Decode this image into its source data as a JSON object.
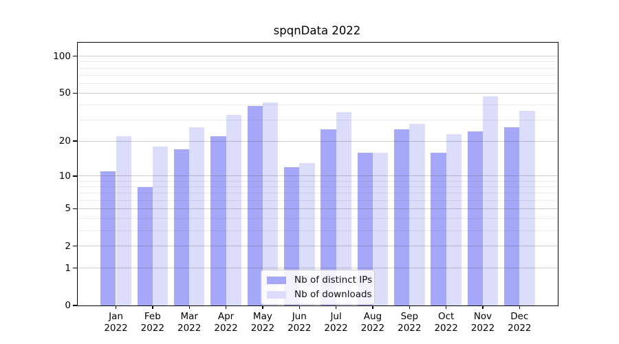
{
  "chart_data": {
    "type": "bar",
    "title": "spqnData 2022",
    "categories": [
      "Jan 2022",
      "Feb 2022",
      "Mar 2022",
      "Apr 2022",
      "May 2022",
      "Jun 2022",
      "Jul 2022",
      "Aug 2022",
      "Sep 2022",
      "Oct 2022",
      "Nov 2022",
      "Dec 2022"
    ],
    "series": [
      {
        "key": "ips",
        "name": "Nb of distinct IPs",
        "color": "#a5a7f8",
        "values": [
          11,
          8,
          17,
          22,
          39,
          12,
          25,
          16,
          25,
          16,
          24,
          26
        ]
      },
      {
        "key": "downloads",
        "name": "Nb of downloads",
        "color": "#dcddfb",
        "values": [
          22,
          18,
          26,
          33,
          42,
          13,
          35,
          16,
          28,
          23,
          47,
          36
        ]
      }
    ],
    "xlabel": "",
    "ylabel": "",
    "yscale": "log1p",
    "ylim": [
      0,
      128
    ],
    "y_major_ticks": [
      100,
      50,
      20,
      10,
      5,
      2,
      1,
      0
    ],
    "y_minor_gridlines": [
      90,
      80,
      70,
      60,
      40,
      30,
      9,
      8,
      7,
      6,
      4,
      3
    ],
    "grid": "on",
    "grid_above_bars": true,
    "legend_position": "lower center",
    "colors": {
      "spine": "#000000",
      "text": "#000000",
      "major_grid": "rgba(90,90,90,0.30)",
      "minor_grid": "rgba(90,90,90,0.13)",
      "legend_bg": "rgba(255,255,255,0.85)",
      "legend_border": "#cccccc"
    }
  }
}
